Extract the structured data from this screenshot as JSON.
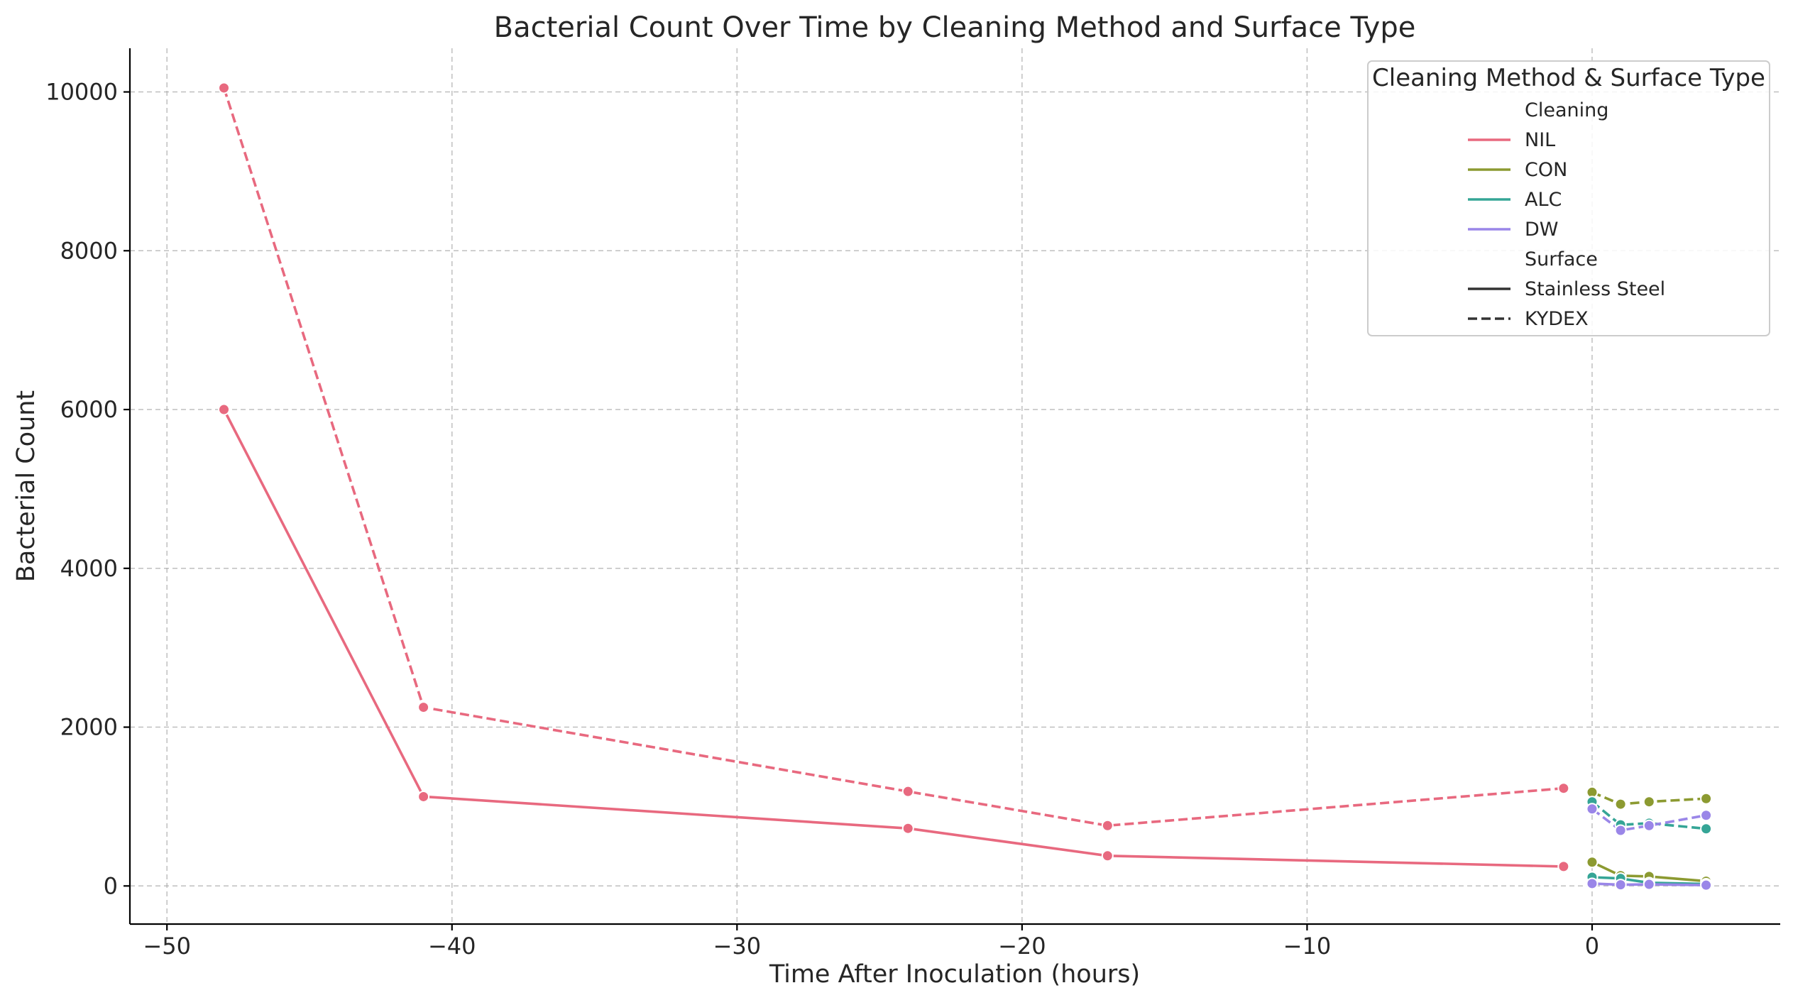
{
  "chart_data": {
    "type": "line",
    "title": "Bacterial Count Over Time by Cleaning Method and Surface Type",
    "xlabel": "Time After Inoculation (hours)",
    "ylabel": "Bacterial Count",
    "xlim": [
      -51.3,
      6.6
    ],
    "ylim": [
      -480,
      10550
    ],
    "xticks": [
      -50,
      -40,
      -30,
      -20,
      -10,
      0
    ],
    "xtick_labels": [
      "−50",
      "−40",
      "−30",
      "−20",
      "−10",
      "0"
    ],
    "yticks": [
      0,
      2000,
      4000,
      6000,
      8000,
      10000
    ],
    "ytick_labels": [
      "0",
      "2000",
      "4000",
      "6000",
      "8000",
      "10000"
    ],
    "grid": true,
    "legend": {
      "title": "Cleaning Method & Surface Type",
      "placement": "top-right",
      "hue_title": "Cleaning",
      "style_title": "Surface",
      "hue_entries": [
        {
          "label": "NIL",
          "color": "#e8697f"
        },
        {
          "label": "CON",
          "color": "#8c9a31"
        },
        {
          "label": "ALC",
          "color": "#35a596"
        },
        {
          "label": "DW",
          "color": "#9a86e8"
        }
      ],
      "style_entries": [
        {
          "label": "Stainless Steel",
          "dash": "solid"
        },
        {
          "label": "KYDEX",
          "dash": "dashed"
        }
      ]
    },
    "series": [
      {
        "name": "NIL",
        "surface": "Stainless Steel",
        "color": "#e8697f",
        "dash": "solid",
        "x": [
          -48,
          -41,
          -24,
          -17,
          -1
        ],
        "y": [
          6000,
          1125,
          725,
          380,
          245
        ]
      },
      {
        "name": "NIL",
        "surface": "KYDEX",
        "color": "#e8697f",
        "dash": "dashed",
        "x": [
          -48,
          -41,
          -24,
          -17,
          -1
        ],
        "y": [
          10050,
          2250,
          1190,
          760,
          1230
        ]
      },
      {
        "name": "CON",
        "surface": "Stainless Steel",
        "color": "#8c9a31",
        "dash": "solid",
        "x": [
          0,
          1,
          2,
          4
        ],
        "y": [
          300,
          130,
          120,
          60
        ]
      },
      {
        "name": "CON",
        "surface": "KYDEX",
        "color": "#8c9a31",
        "dash": "dashed",
        "x": [
          0,
          1,
          2,
          4
        ],
        "y": [
          1180,
          1030,
          1060,
          1100
        ]
      },
      {
        "name": "ALC",
        "surface": "Stainless Steel",
        "color": "#35a596",
        "dash": "solid",
        "x": [
          0,
          1,
          2,
          4
        ],
        "y": [
          110,
          95,
          40,
          25
        ]
      },
      {
        "name": "ALC",
        "surface": "KYDEX",
        "color": "#35a596",
        "dash": "dashed",
        "x": [
          0,
          1,
          2,
          4
        ],
        "y": [
          1060,
          770,
          790,
          720
        ]
      },
      {
        "name": "DW",
        "surface": "Stainless Steel",
        "color": "#9a86e8",
        "dash": "solid",
        "x": [
          0,
          1,
          2,
          4
        ],
        "y": [
          30,
          15,
          20,
          10
        ]
      },
      {
        "name": "DW",
        "surface": "KYDEX",
        "color": "#9a86e8",
        "dash": "dashed",
        "x": [
          0,
          1,
          2,
          4
        ],
        "y": [
          970,
          700,
          760,
          890
        ]
      }
    ]
  }
}
